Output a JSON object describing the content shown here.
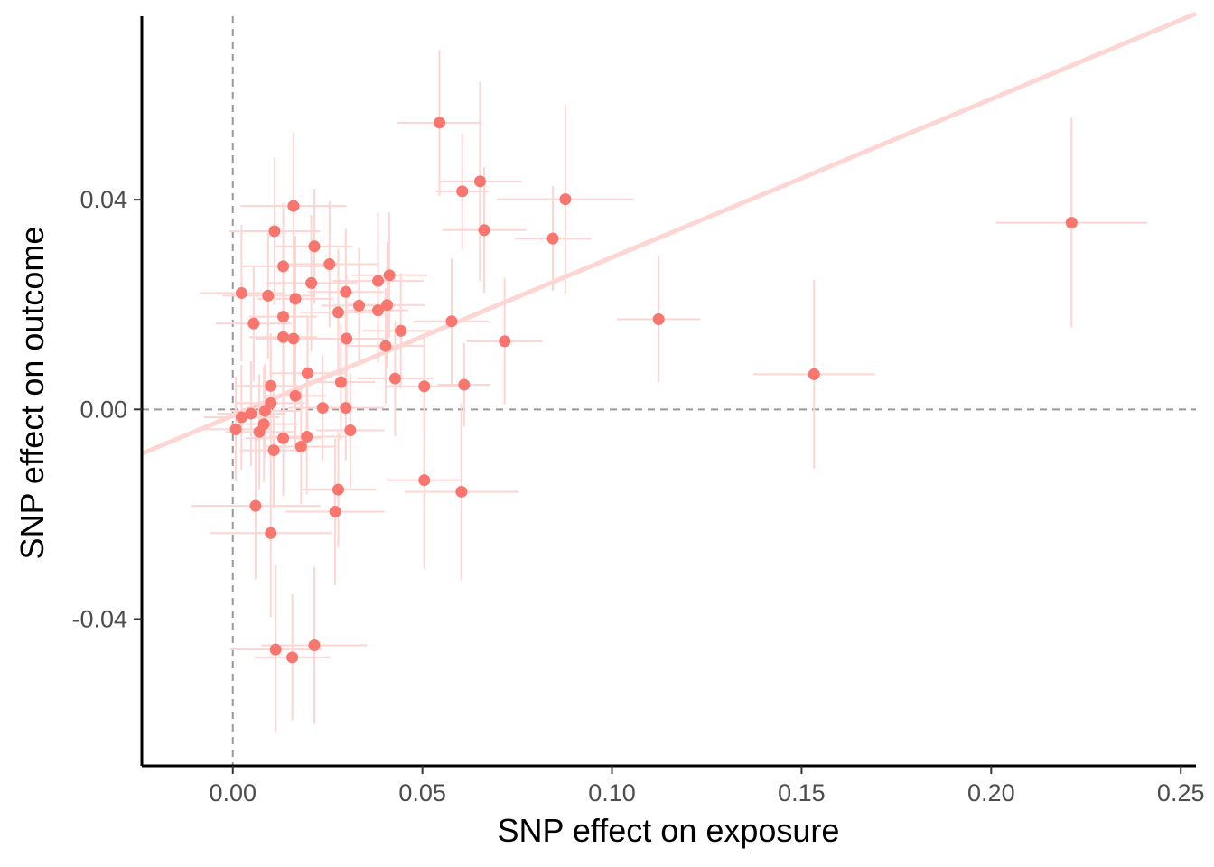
{
  "chart_data": {
    "type": "scatter",
    "title": "",
    "xlabel": "SNP effect on exposure",
    "ylabel": "SNP effect on outcome",
    "xlim": [
      -0.024,
      0.254
    ],
    "ylim": [
      -0.068,
      0.075
    ],
    "x_ticks": [
      0.0,
      0.05,
      0.1,
      0.15,
      0.2,
      0.25
    ],
    "x_tick_labels": [
      "0.00",
      "0.05",
      "0.10",
      "0.15",
      "0.20",
      "0.25"
    ],
    "y_ticks": [
      -0.04,
      0.0,
      0.04
    ],
    "y_tick_labels": [
      "-0.04",
      "0.00",
      "0.04"
    ],
    "reference_lines": {
      "x": 0,
      "y": 0,
      "style": "dashed"
    },
    "grid": false,
    "point_color": "#F8766D",
    "errorbar_color": "#FDD5D3",
    "fit_line": {
      "intercept": -0.0012,
      "slope": 0.302,
      "color": "#FDD5D3"
    },
    "points": [
      {
        "x": 0.0545,
        "y": 0.0547,
        "xerr": 0.011,
        "yerr": 0.014
      },
      {
        "x": 0.0605,
        "y": 0.0416,
        "xerr": 0.007,
        "yerr": 0.011
      },
      {
        "x": 0.0652,
        "y": 0.0435,
        "xerr": 0.011,
        "yerr": 0.019
      },
      {
        "x": 0.0877,
        "y": 0.0401,
        "xerr": 0.018,
        "yerr": 0.018
      },
      {
        "x": 0.0663,
        "y": 0.0342,
        "xerr": 0.011,
        "yerr": 0.012
      },
      {
        "x": 0.0844,
        "y": 0.0326,
        "xerr": 0.01,
        "yerr": 0.01
      },
      {
        "x": 0.2212,
        "y": 0.0356,
        "xerr": 0.02,
        "yerr": 0.02
      },
      {
        "x": 0.1123,
        "y": 0.0172,
        "xerr": 0.011,
        "yerr": 0.012
      },
      {
        "x": 0.0577,
        "y": 0.0168,
        "xerr": 0.01,
        "yerr": 0.012
      },
      {
        "x": 0.0717,
        "y": 0.013,
        "xerr": 0.01,
        "yerr": 0.012
      },
      {
        "x": 0.1533,
        "y": 0.0067,
        "xerr": 0.016,
        "yerr": 0.018
      },
      {
        "x": 0.061,
        "y": 0.0047,
        "xerr": 0.007,
        "yerr": 0.008
      },
      {
        "x": 0.0505,
        "y": 0.0044,
        "xerr": 0.01,
        "yerr": 0.01
      },
      {
        "x": 0.0505,
        "y": -0.0135,
        "xerr": 0.01,
        "yerr": 0.017
      },
      {
        "x": 0.0603,
        "y": -0.0157,
        "xerr": 0.015,
        "yerr": 0.017
      },
      {
        "x": 0.016,
        "y": 0.0388,
        "xerr": 0.014,
        "yerr": 0.014
      },
      {
        "x": 0.011,
        "y": 0.034,
        "xerr": 0.012,
        "yerr": 0.014
      },
      {
        "x": 0.0215,
        "y": 0.0311,
        "xerr": 0.01,
        "yerr": 0.011
      },
      {
        "x": 0.0255,
        "y": 0.0277,
        "xerr": 0.013,
        "yerr": 0.012
      },
      {
        "x": 0.0133,
        "y": 0.0273,
        "xerr": 0.011,
        "yerr": 0.012
      },
      {
        "x": 0.0413,
        "y": 0.0256,
        "xerr": 0.01,
        "yerr": 0.012
      },
      {
        "x": 0.0383,
        "y": 0.0245,
        "xerr": 0.012,
        "yerr": 0.013
      },
      {
        "x": 0.0207,
        "y": 0.0241,
        "xerr": 0.012,
        "yerr": 0.013
      },
      {
        "x": 0.0023,
        "y": 0.0222,
        "xerr": 0.011,
        "yerr": 0.013
      },
      {
        "x": 0.0093,
        "y": 0.0217,
        "xerr": 0.012,
        "yerr": 0.012
      },
      {
        "x": 0.0298,
        "y": 0.0224,
        "xerr": 0.01,
        "yerr": 0.012
      },
      {
        "x": 0.0165,
        "y": 0.0211,
        "xerr": 0.01,
        "yerr": 0.012
      },
      {
        "x": 0.0333,
        "y": 0.0198,
        "xerr": 0.01,
        "yerr": 0.011
      },
      {
        "x": 0.0407,
        "y": 0.0199,
        "xerr": 0.01,
        "yerr": 0.012
      },
      {
        "x": 0.0278,
        "y": 0.0185,
        "xerr": 0.01,
        "yerr": 0.012
      },
      {
        "x": 0.0383,
        "y": 0.0189,
        "xerr": 0.008,
        "yerr": 0.01
      },
      {
        "x": 0.0133,
        "y": 0.0177,
        "xerr": 0.009,
        "yerr": 0.012
      },
      {
        "x": 0.0055,
        "y": 0.0164,
        "xerr": 0.01,
        "yerr": 0.011
      },
      {
        "x": 0.0443,
        "y": 0.015,
        "xerr": 0.01,
        "yerr": 0.011
      },
      {
        "x": 0.0133,
        "y": 0.0138,
        "xerr": 0.009,
        "yerr": 0.011
      },
      {
        "x": 0.016,
        "y": 0.0135,
        "xerr": 0.01,
        "yerr": 0.012
      },
      {
        "x": 0.03,
        "y": 0.0135,
        "xerr": 0.01,
        "yerr": 0.012
      },
      {
        "x": 0.0403,
        "y": 0.0121,
        "xerr": 0.01,
        "yerr": 0.011
      },
      {
        "x": 0.0197,
        "y": 0.0069,
        "xerr": 0.01,
        "yerr": 0.011
      },
      {
        "x": 0.0428,
        "y": 0.0059,
        "xerr": 0.01,
        "yerr": 0.011
      },
      {
        "x": 0.0285,
        "y": 0.0052,
        "xerr": 0.009,
        "yerr": 0.011
      },
      {
        "x": 0.01,
        "y": 0.0045,
        "xerr": 0.009,
        "yerr": 0.01
      },
      {
        "x": 0.0165,
        "y": 0.0026,
        "xerr": 0.008,
        "yerr": 0.01
      },
      {
        "x": 0.01,
        "y": 0.0012,
        "xerr": 0.009,
        "yerr": 0.01
      },
      {
        "x": 0.0237,
        "y": 0.0003,
        "xerr": 0.009,
        "yerr": 0.01
      },
      {
        "x": 0.0298,
        "y": 0.0003,
        "xerr": 0.01,
        "yerr": 0.01
      },
      {
        "x": 0.0085,
        "y": -0.0003,
        "xerr": 0.009,
        "yerr": 0.009
      },
      {
        "x": 0.0048,
        "y": -0.0008,
        "xerr": 0.009,
        "yerr": 0.01
      },
      {
        "x": 0.0023,
        "y": -0.0015,
        "xerr": 0.01,
        "yerr": 0.01
      },
      {
        "x": 0.0082,
        "y": -0.0028,
        "xerr": 0.009,
        "yerr": 0.011
      },
      {
        "x": 0.0008,
        "y": -0.0038,
        "xerr": 0.009,
        "yerr": 0.01
      },
      {
        "x": 0.007,
        "y": -0.0043,
        "xerr": 0.009,
        "yerr": 0.011
      },
      {
        "x": 0.031,
        "y": -0.004,
        "xerr": 0.009,
        "yerr": 0.011
      },
      {
        "x": 0.0133,
        "y": -0.0055,
        "xerr": 0.01,
        "yerr": 0.011
      },
      {
        "x": 0.0195,
        "y": -0.0052,
        "xerr": 0.01,
        "yerr": 0.011
      },
      {
        "x": 0.018,
        "y": -0.0071,
        "xerr": 0.009,
        "yerr": 0.011
      },
      {
        "x": 0.0108,
        "y": -0.0078,
        "xerr": 0.009,
        "yerr": 0.011
      },
      {
        "x": 0.0278,
        "y": -0.0153,
        "xerr": 0.01,
        "yerr": 0.011
      },
      {
        "x": 0.027,
        "y": -0.0195,
        "xerr": 0.013,
        "yerr": 0.014
      },
      {
        "x": 0.006,
        "y": -0.0184,
        "xerr": 0.017,
        "yerr": 0.014
      },
      {
        "x": 0.01,
        "y": -0.0236,
        "xerr": 0.016,
        "yerr": 0.016
      },
      {
        "x": 0.0215,
        "y": -0.045,
        "xerr": 0.014,
        "yerr": 0.015
      },
      {
        "x": 0.0113,
        "y": -0.0458,
        "xerr": 0.012,
        "yerr": 0.016
      },
      {
        "x": 0.0157,
        "y": -0.0473,
        "xerr": 0.01,
        "yerr": 0.012
      }
    ]
  }
}
